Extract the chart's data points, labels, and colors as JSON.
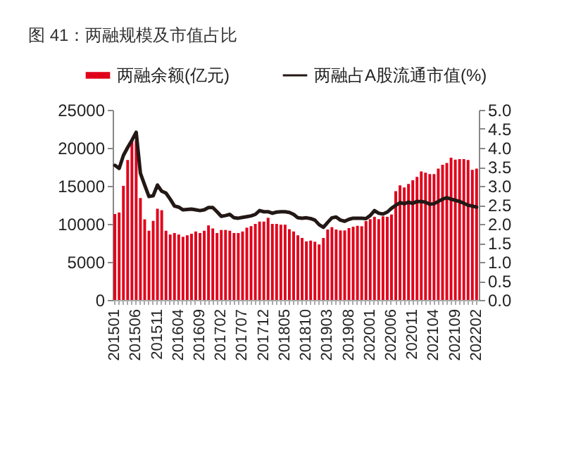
{
  "chart_data": {
    "type": "bar",
    "title": "图 41：两融规模及市值占比",
    "categories": [
      "201501",
      null,
      null,
      null,
      null,
      "201506",
      null,
      null,
      null,
      null,
      "201511",
      null,
      null,
      null,
      null,
      "201604",
      null,
      null,
      null,
      null,
      "201609",
      null,
      null,
      null,
      null,
      "201702",
      null,
      null,
      null,
      null,
      "201707",
      null,
      null,
      null,
      null,
      "201712",
      null,
      null,
      null,
      null,
      "201805",
      null,
      null,
      null,
      null,
      "201810",
      null,
      null,
      null,
      null,
      "201903",
      null,
      null,
      null,
      null,
      "201908",
      null,
      null,
      null,
      null,
      "202001",
      null,
      null,
      null,
      null,
      "202006",
      null,
      null,
      null,
      null,
      "202011",
      null,
      null,
      null,
      null,
      "202104",
      null,
      null,
      null,
      null,
      "202109",
      null,
      null,
      null,
      null,
      "202202"
    ],
    "series": [
      {
        "name": "两融余额(亿元)",
        "color": "#e0001b",
        "values": [
          11300,
          11500,
          15000,
          18400,
          20800,
          21000,
          13400,
          10600,
          9100,
          10400,
          12000,
          11800,
          9100,
          8600,
          8800,
          8600,
          8300,
          8500,
          8700,
          9000,
          8800,
          9100,
          9800,
          9400,
          8800,
          9200,
          9200,
          9100,
          8800,
          8800,
          9000,
          9500,
          9700,
          10000,
          10300,
          10300,
          10800,
          10000,
          10000,
          9900,
          9900,
          9300,
          9000,
          8500,
          8150,
          7700,
          7800,
          7650,
          7300,
          8150,
          9260,
          9570,
          9260,
          9140,
          9140,
          9450,
          9630,
          9750,
          9690,
          10370,
          10620,
          10930,
          10620,
          10990,
          10930,
          11230,
          14300,
          15060,
          14800,
          15250,
          15740,
          16170,
          16900,
          16730,
          16540,
          16540,
          17280,
          17780,
          18020,
          18700,
          18460,
          18520,
          18520,
          18400,
          17100,
          17280
        ]
      },
      {
        "name": "两融占A股流通市值(%)",
        "type": "line",
        "axis": "y2",
        "color": "#231815",
        "values": [
          3.54,
          3.46,
          3.8,
          4.01,
          4.2,
          4.41,
          3.33,
          3.02,
          2.72,
          2.74,
          3.02,
          2.86,
          2.81,
          2.65,
          2.47,
          2.44,
          2.37,
          2.38,
          2.39,
          2.37,
          2.35,
          2.37,
          2.43,
          2.43,
          2.32,
          2.2,
          2.22,
          2.25,
          2.16,
          2.15,
          2.17,
          2.19,
          2.21,
          2.25,
          2.35,
          2.32,
          2.32,
          2.28,
          2.31,
          2.32,
          2.32,
          2.3,
          2.25,
          2.16,
          2.15,
          2.16,
          2.14,
          2.1,
          1.98,
          1.91,
          2.04,
          2.16,
          2.18,
          2.1,
          2.07,
          2.12,
          2.15,
          2.15,
          2.15,
          2.14,
          2.22,
          2.35,
          2.28,
          2.26,
          2.31,
          2.41,
          2.49,
          2.56,
          2.53,
          2.57,
          2.54,
          2.59,
          2.59,
          2.57,
          2.52,
          2.53,
          2.59,
          2.65,
          2.69,
          2.65,
          2.62,
          2.59,
          2.54,
          2.49,
          2.47,
          2.44
        ]
      }
    ],
    "ylim": [
      0,
      25000
    ],
    "yticks": [
      0,
      5000,
      10000,
      15000,
      20000,
      25000
    ],
    "y2lim": [
      0,
      5
    ],
    "y2ticks": [
      {
        "value": 0,
        "label": "0.0"
      },
      {
        "value": 0.5,
        "label": "0.5"
      },
      {
        "value": 1,
        "label": "1.0"
      },
      {
        "value": 1.5,
        "label": "1.5"
      },
      {
        "value": 2,
        "label": "2.0"
      },
      {
        "value": 2.5,
        "label": "2.5"
      },
      {
        "value": 3,
        "label": "3.0"
      },
      {
        "value": 3.5,
        "label": "3.5"
      },
      {
        "value": 4,
        "label": "4.0"
      },
      {
        "value": 4.5,
        "label": "4.5"
      },
      {
        "value": 5,
        "label": "5.0"
      }
    ],
    "legend": "top",
    "grid": false
  }
}
